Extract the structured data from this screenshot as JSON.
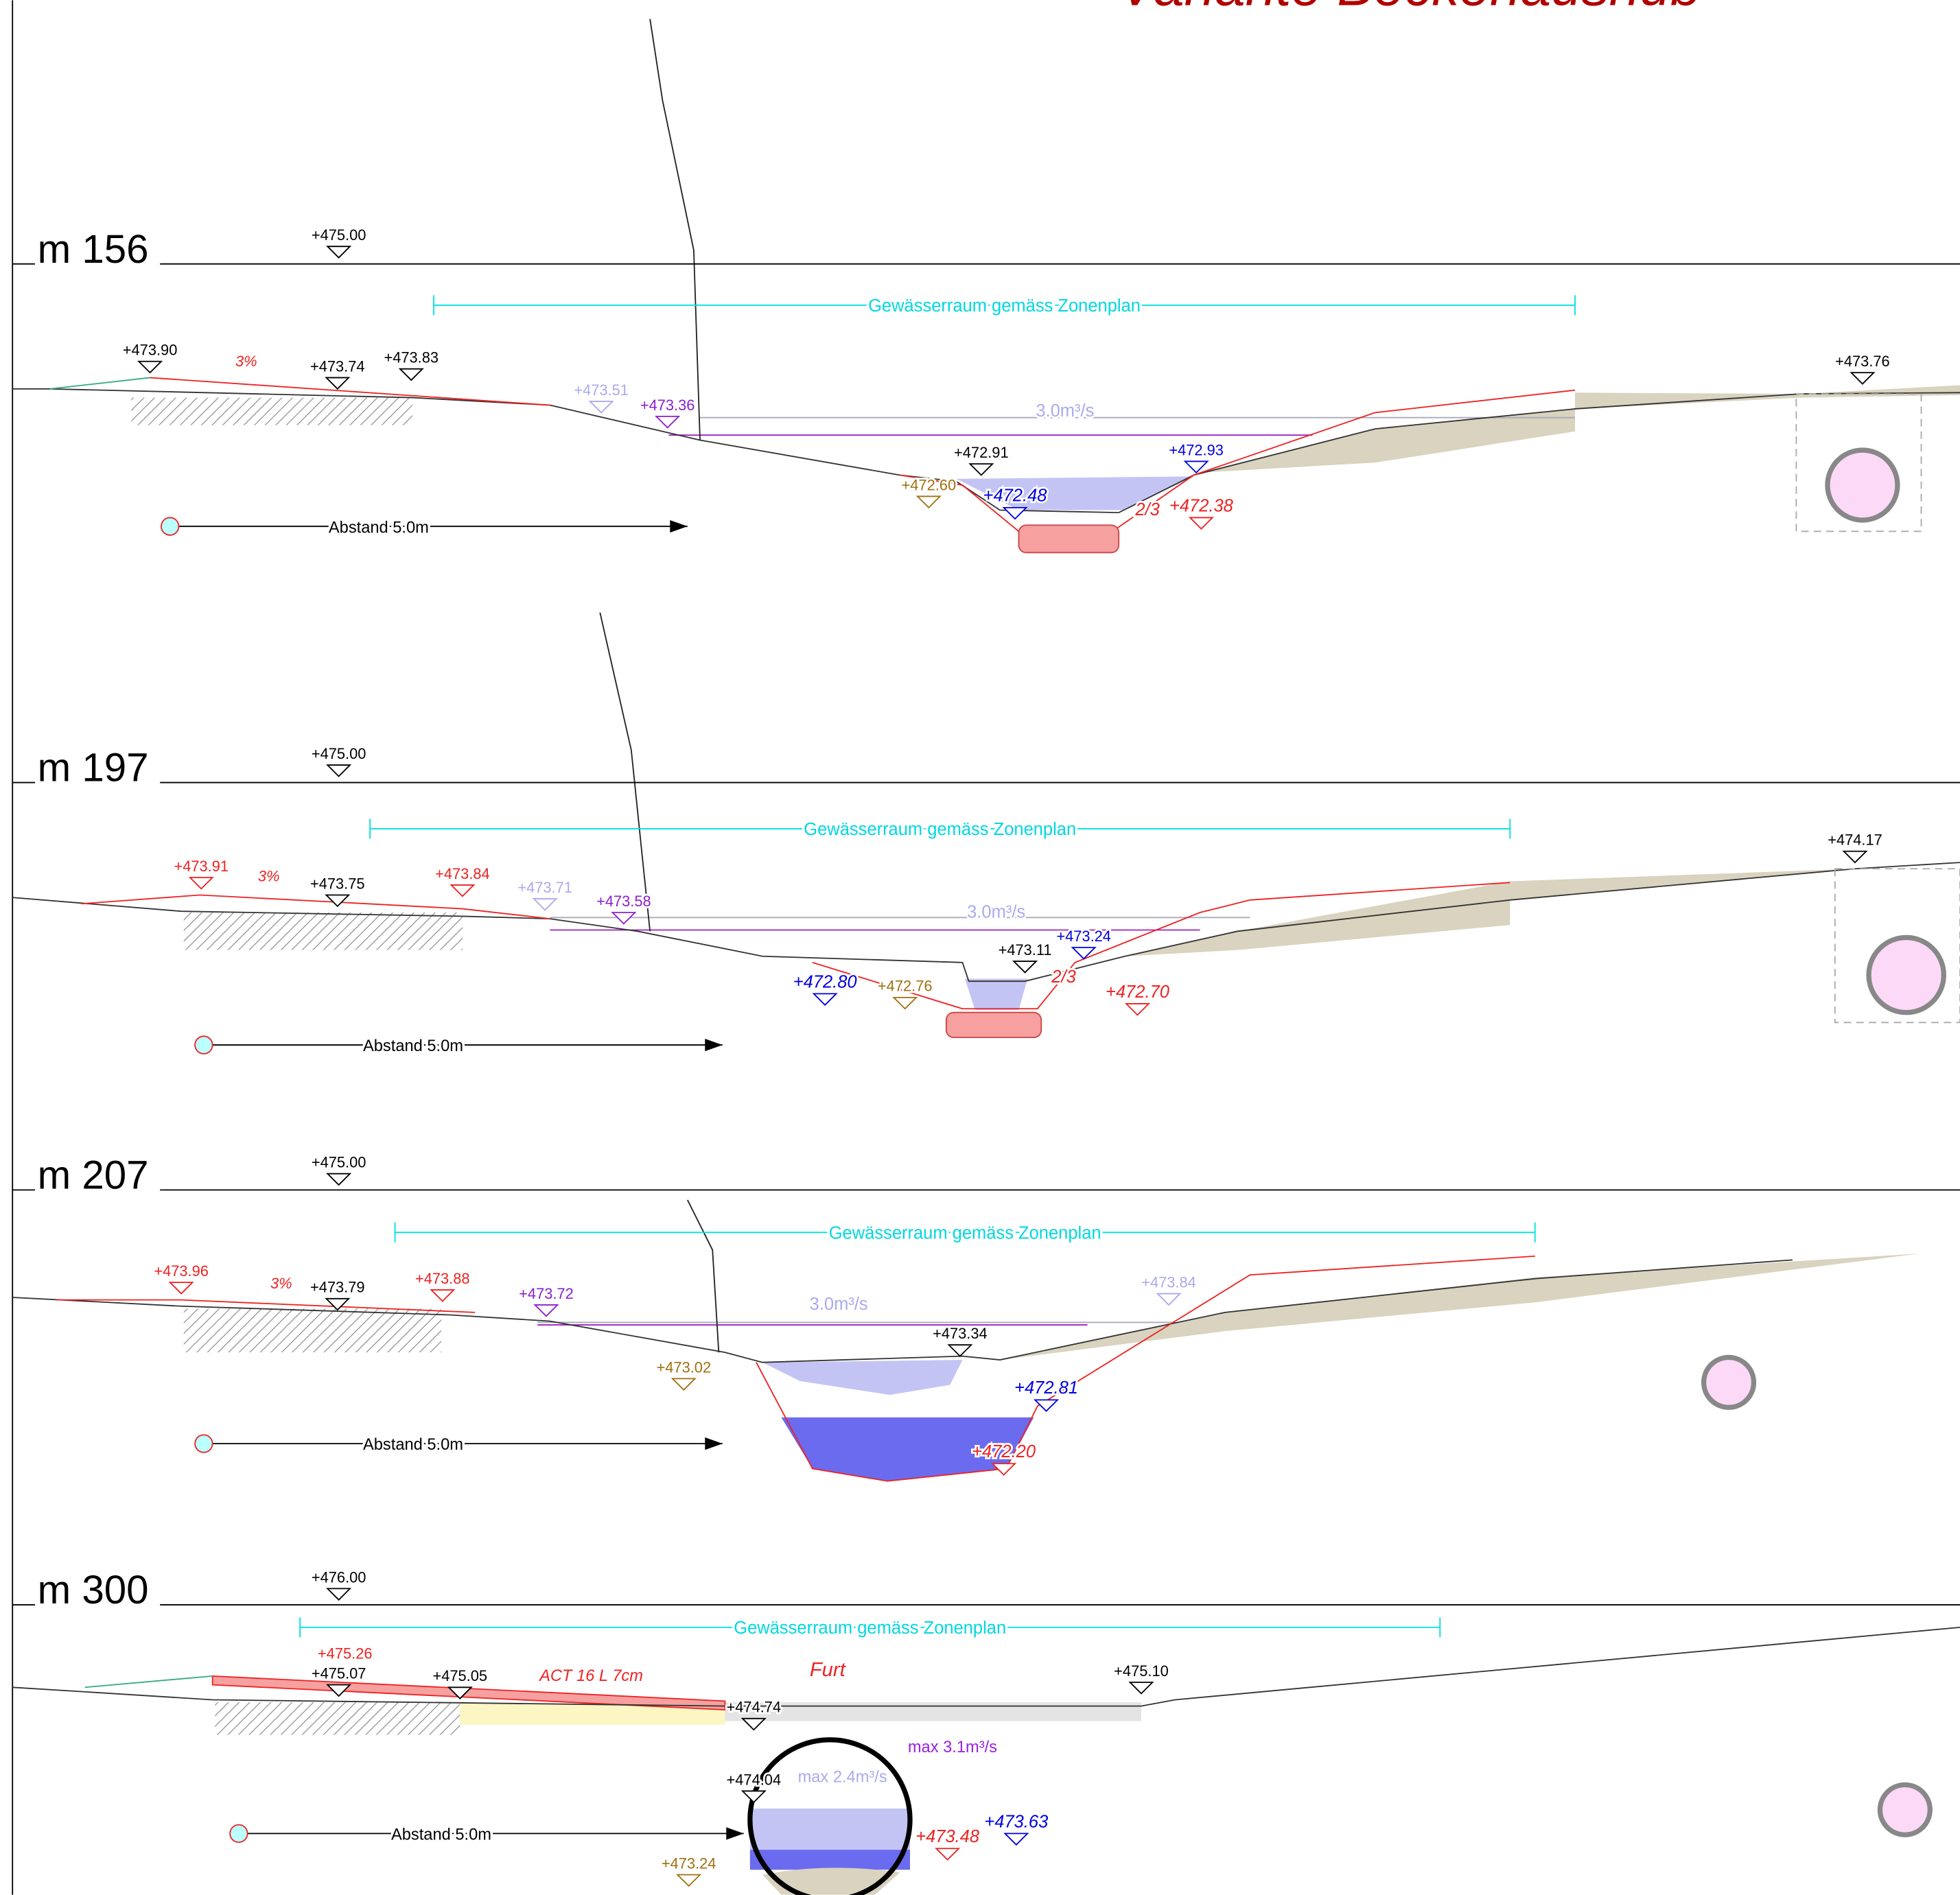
{
  "title": "Variante Beckenaushub",
  "sections": [
    {
      "label": "m 156",
      "zone": "Gewässerraum gemäss Zonenplan",
      "distance": "Abstand 5.0m",
      "texts": [
        "+475.00",
        "+473.90",
        "3%",
        "+473.74",
        "+473.83",
        "+473.51",
        "+473.36",
        "3.0m³/s",
        "+472.91",
        "+472.93",
        "+472.60",
        "+472.48",
        "2/3",
        "+472.38",
        "+473.76"
      ]
    },
    {
      "label": "m 197",
      "zone": "Gewässerraum gemäss Zonenplan",
      "distance": "Abstand 5.0m",
      "texts": [
        "+475.00",
        "+473.91",
        "3%",
        "+473.75",
        "+473.84",
        "+473.71",
        "+473.58",
        "3.0m³/s",
        "+474.17",
        "+473.24",
        "+473.11",
        "+472.80",
        "+472.76",
        "2/3",
        "+472.70"
      ]
    },
    {
      "label": "m 207",
      "zone": "Gewässerraum gemäss Zonenplan",
      "distance": "Abstand 5.0m",
      "texts": [
        "+475.00",
        "+473.96",
        "3%",
        "+473.79",
        "+473.88",
        "+473.72",
        "3.0m³/s",
        "+473.84",
        "+473.34",
        "+473.02",
        "+472.81",
        "+472.20"
      ]
    },
    {
      "label": "m 300",
      "zone": "Gewässerraum gemäss Zonenplan",
      "distance": "Abstand 5.0m",
      "texts": [
        "+476.00",
        "+475.26",
        "+475.07",
        "+475.05",
        "ACT 16 L 7cm",
        "Furt",
        "+475.10",
        "+474.74",
        "max 3.1m³/s",
        "max 2.4m³/s",
        "+474.04",
        "+473.48",
        "+473.63",
        "+473.24"
      ]
    }
  ]
}
